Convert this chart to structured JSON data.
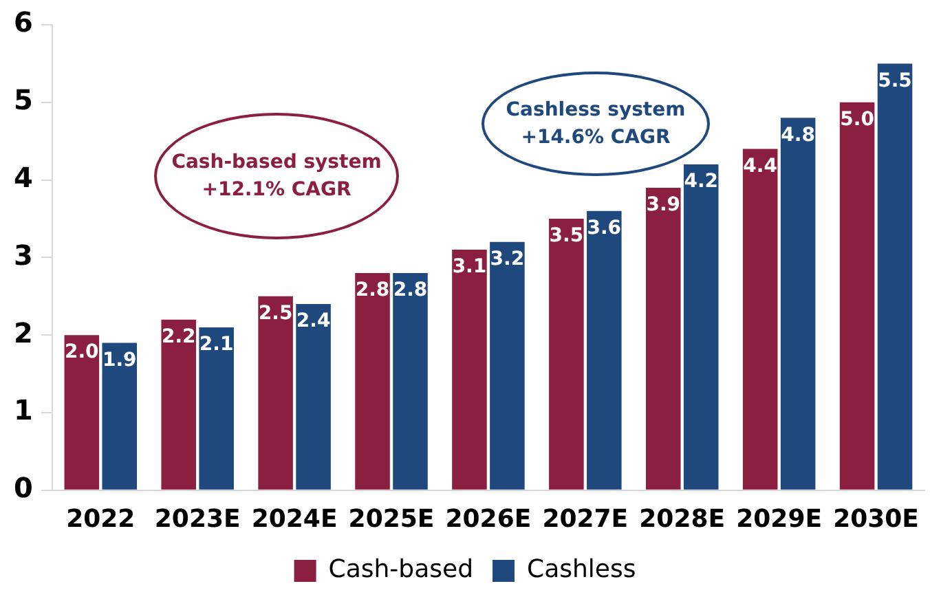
{
  "chart_data": {
    "type": "bar",
    "categories": [
      "2022",
      "2023E",
      "2024E",
      "2025E",
      "2026E",
      "2027E",
      "2028E",
      "2029E",
      "2030E"
    ],
    "series": [
      {
        "name": "Cash-based",
        "color": "#8b1f3f",
        "values": [
          2.0,
          2.2,
          2.5,
          2.8,
          3.1,
          3.5,
          3.9,
          4.4,
          5.0
        ],
        "value_labels": [
          "2.0",
          "2.2",
          "2.5",
          "2.8",
          "3.1",
          "3.5",
          "3.9",
          "4.4",
          "5.0"
        ]
      },
      {
        "name": "Cashless",
        "color": "#1f497d",
        "values": [
          1.9,
          2.1,
          2.4,
          2.8,
          3.2,
          3.6,
          4.2,
          4.8,
          5.5
        ],
        "value_labels": [
          "1.9",
          "2.1",
          "2.4",
          "2.8",
          "3.2",
          "3.6",
          "4.2",
          "4.8",
          "5.5"
        ]
      }
    ],
    "ylim": [
      0,
      6
    ],
    "yticks": [
      0,
      1,
      2,
      3,
      4,
      5,
      6
    ],
    "grid": false,
    "legend": "bottom",
    "annotations": [
      "Cash-based system\n+12.1% CAGR",
      "Cashless system\n+14.6% CAGR"
    ]
  }
}
